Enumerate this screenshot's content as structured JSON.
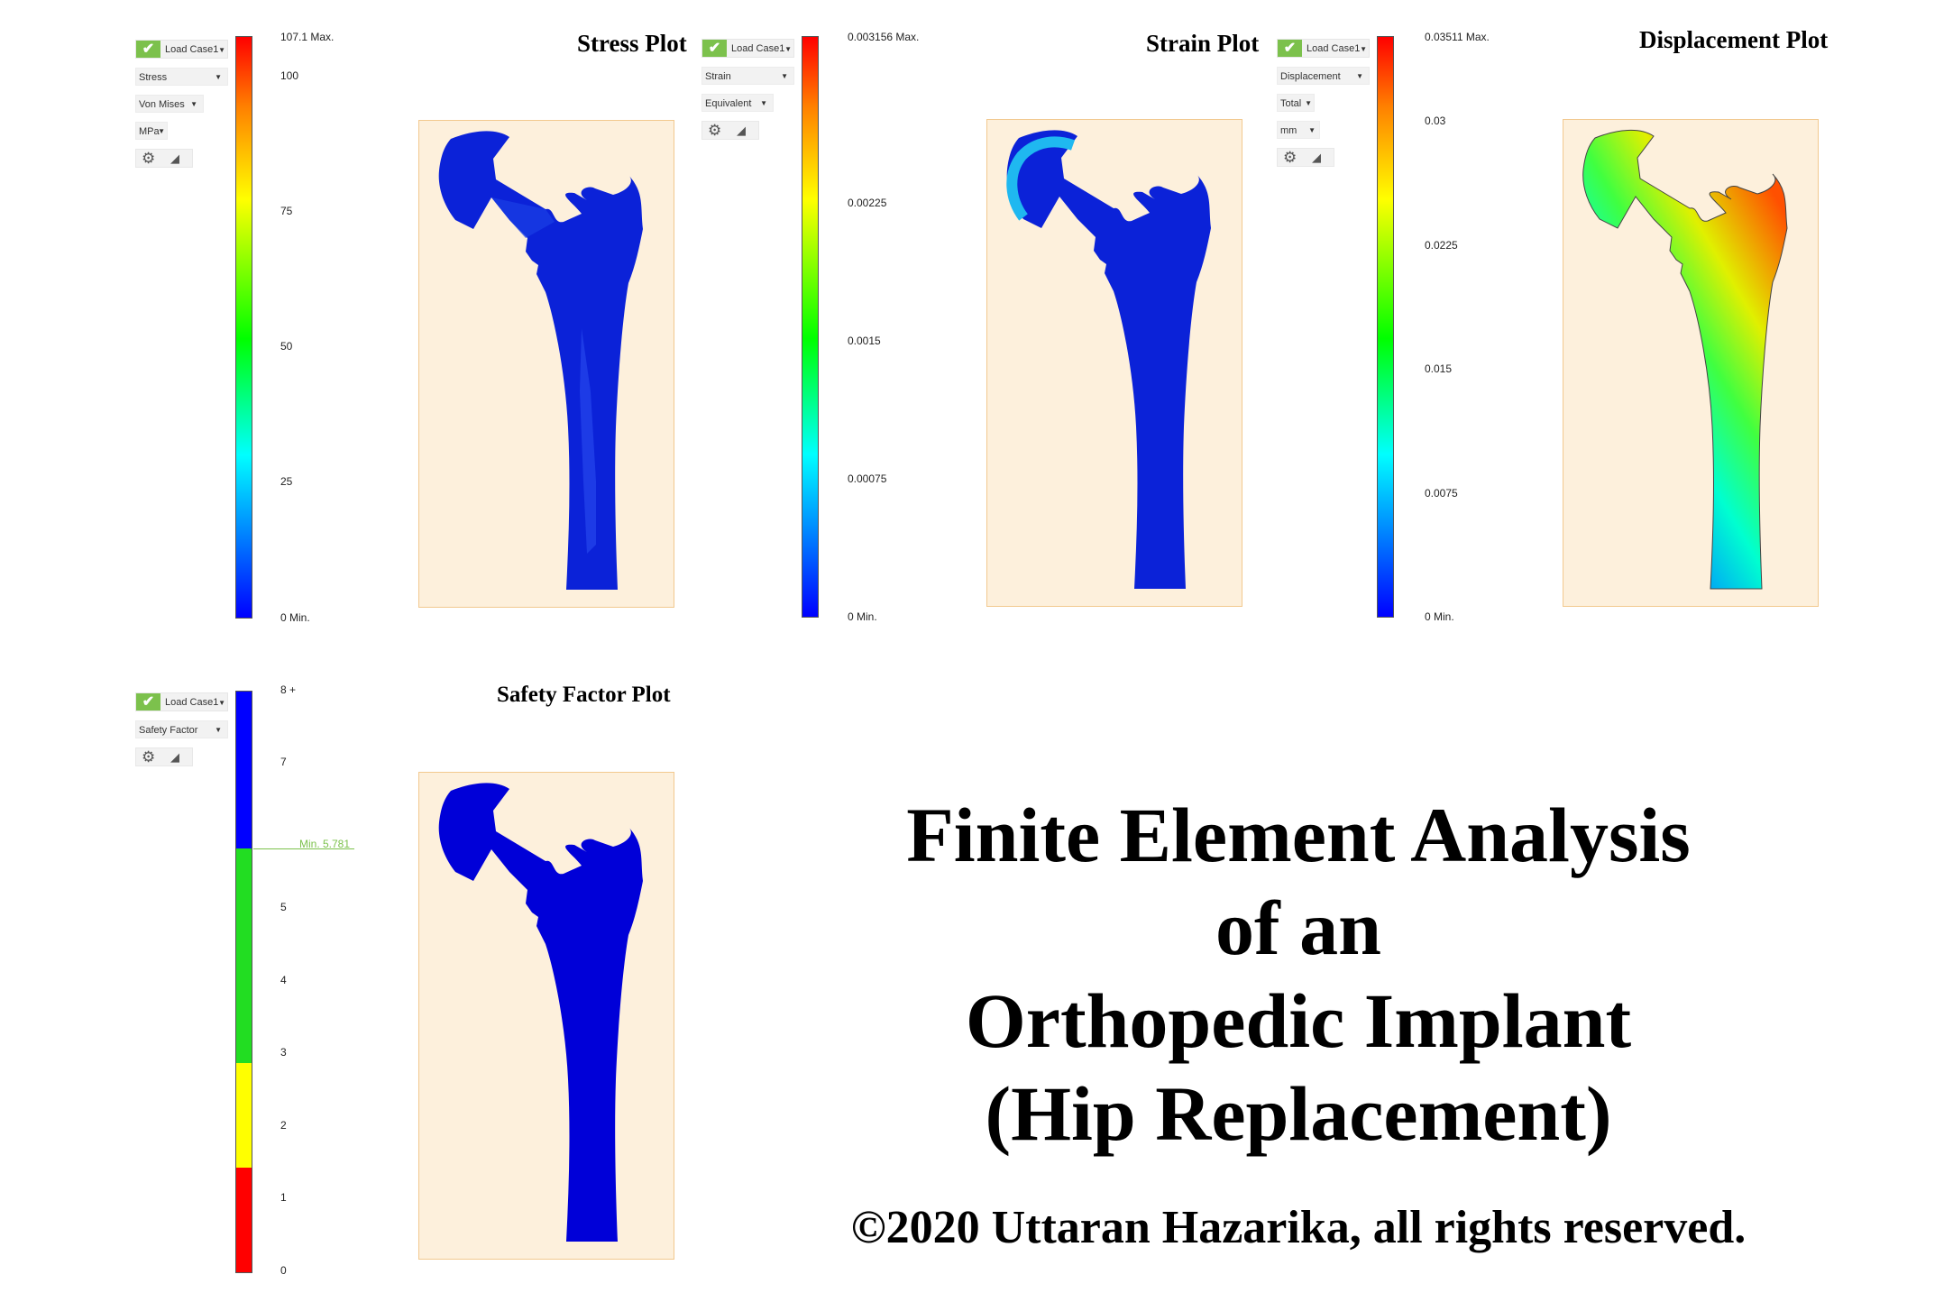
{
  "panels": {
    "stress": {
      "title": "Stress Plot",
      "load_case": "Load Case1",
      "result_type": "Stress",
      "sub_type": "Von Mises",
      "unit": "MPa",
      "legend_max": "107.1 Max.",
      "legend_min": "0 Min.",
      "ticks": [
        "100",
        "75",
        "50",
        "25"
      ]
    },
    "strain": {
      "title": "Strain Plot",
      "load_case": "Load Case1",
      "result_type": "Strain",
      "sub_type": "Equivalent",
      "legend_max": "0.003156 Max.",
      "legend_min": "0 Min.",
      "ticks": [
        "0.00225",
        "0.0015",
        "0.00075"
      ]
    },
    "displacement": {
      "title": "Displacement Plot",
      "load_case": "Load Case1",
      "result_type": "Displacement",
      "sub_type": "Total",
      "unit": "mm",
      "legend_max": "0.03511 Max.",
      "legend_min": "0 Min.",
      "ticks": [
        "0.03",
        "0.0225",
        "0.015",
        "0.0075"
      ]
    },
    "safety": {
      "title": "Safety Factor Plot",
      "load_case": "Load Case1",
      "result_type": "Safety Factor",
      "ticks": [
        "8 +",
        "7",
        "5",
        "4",
        "3",
        "2",
        "1",
        "0"
      ],
      "min_marker": "Min. 5.781"
    }
  },
  "headline": {
    "line1": "Finite Element Analysis",
    "line2": "of an",
    "line3": "Orthopedic Implant",
    "line4": "(Hip Replacement)"
  },
  "copyright": "©2020 Uttaran Hazarika, all rights reserved.",
  "colors": {
    "implant_blue": "#0b22d8",
    "frame_fill": "#fdf0dc",
    "frame_border": "#f2c98f",
    "check_green": "#7cc14c",
    "safety_blue": "#0000ff",
    "safety_green": "#22dd22",
    "safety_yellow": "#ffff00",
    "safety_red": "#ff0000"
  },
  "icons": [
    "check-icon",
    "gear-icon",
    "triangle-icon",
    "dropdown-arrow-icon"
  ]
}
